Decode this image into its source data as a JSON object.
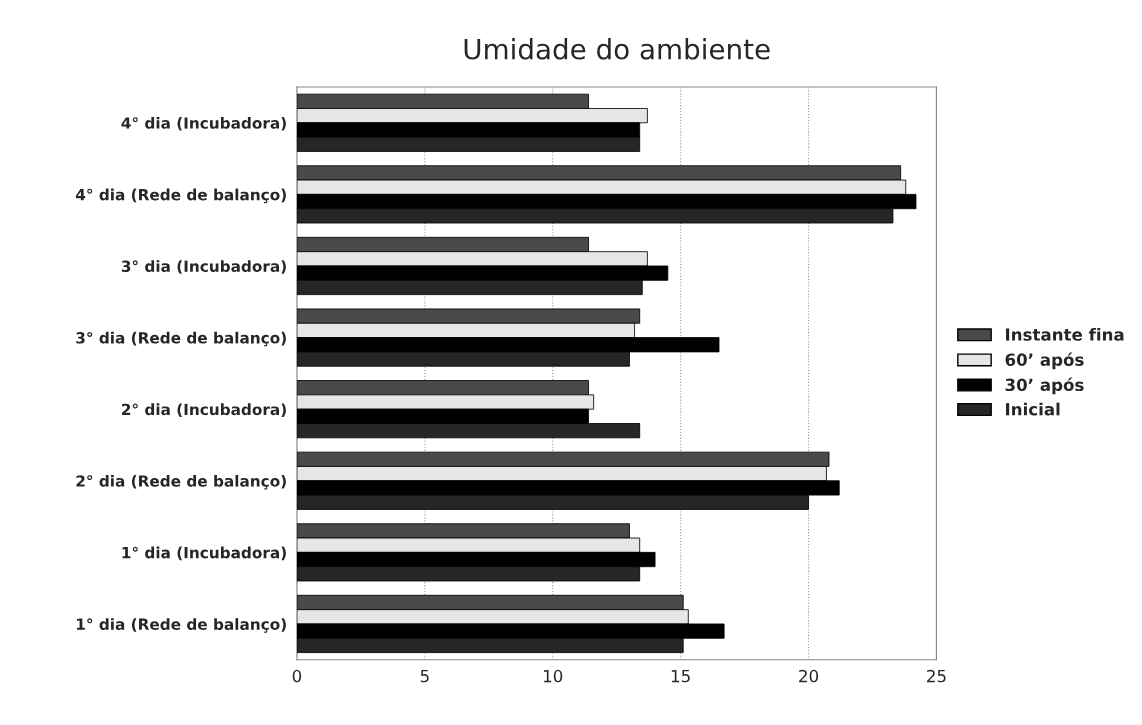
{
  "chart_data": {
    "type": "bar",
    "orientation": "horizontal",
    "title": "Umidade do ambiente",
    "categories": [
      "4° dia (Incubadora)",
      "4° dia (Rede de balanço)",
      "3° dia (Incubadora)",
      "3° dia (Rede de balanço)",
      "2° dia (Incubadora)",
      "2° dia (Rede de balanço)",
      "1° dia (Incubadora)",
      "1° dia (Rede de balanço)"
    ],
    "series": [
      {
        "name": "Instante fina",
        "color": "#4a4a4a",
        "values": [
          11.4,
          23.6,
          11.4,
          13.4,
          11.4,
          20.8,
          13.0,
          15.1
        ]
      },
      {
        "name": "60’ após",
        "color": "#e6e6e6",
        "values": [
          13.7,
          23.8,
          13.7,
          13.2,
          11.6,
          20.7,
          13.4,
          15.3
        ]
      },
      {
        "name": "30’ após",
        "color": "#000000",
        "values": [
          13.4,
          24.2,
          14.5,
          16.5,
          11.4,
          21.2,
          14.0,
          16.7
        ]
      },
      {
        "name": "Inicial",
        "color": "#262626",
        "values": [
          13.4,
          23.3,
          13.5,
          13.0,
          13.4,
          20.0,
          13.4,
          15.1
        ]
      }
    ],
    "xlim": [
      0,
      25
    ],
    "xticks": [
      0,
      5,
      10,
      15,
      20,
      25
    ],
    "grid": "x",
    "legend": "right"
  }
}
